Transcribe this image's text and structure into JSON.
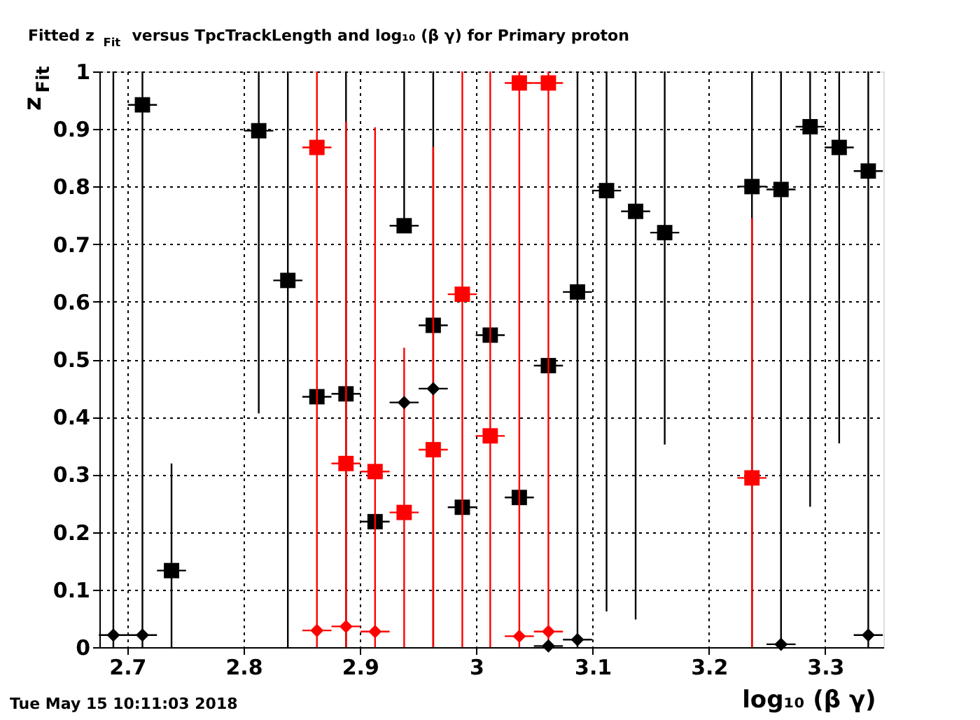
{
  "chart_data": {
    "type": "scatter",
    "title": "Fitted  z$_{Fit}$  versus TpcTrackLength and log₁₀ (β γ) for Primary proton",
    "xlabel": "log₁₀ (β γ)",
    "ylabel": "z$_{Fit}$",
    "annotations": [
      "Tue May 15 10:11:03 2018"
    ],
    "xlim": [
      2.676,
      3.35
    ],
    "xticks": [
      2.7,
      2.8,
      2.9,
      {
        "value": 3.0,
        "label": "3"
      },
      3.1,
      3.2,
      3.3
    ],
    "ylim": [
      0,
      1
    ],
    "yticks": [
      0,
      0.1,
      0.2,
      0.3,
      0.4,
      0.5,
      0.6,
      0.7,
      0.8,
      0.9,
      1
    ],
    "grid": true,
    "series": [
      {
        "color": "#000000",
        "marker": "square",
        "x": [
          2.713,
          2.738,
          2.813,
          2.838,
          2.863,
          2.888,
          2.913,
          2.938,
          2.963,
          2.988,
          3.012,
          3.037,
          3.062,
          3.087,
          3.112,
          3.137,
          3.162,
          3.237,
          3.262,
          3.287,
          3.312,
          3.337
        ],
        "values": [
          0.942,
          0.133,
          0.897,
          0.637,
          0.435,
          0.44,
          0.218,
          0.732,
          0.559,
          0.243,
          0.542,
          0.26,
          0.489,
          0.617,
          0.793,
          0.757,
          0.72,
          0.8,
          0.795,
          0.904,
          0.868,
          0.827
        ],
        "errors": [
          [
            0,
            1
          ],
          [
            0,
            0.319
          ],
          [
            0.406,
            1
          ],
          [
            0,
            1
          ],
          null,
          [
            0,
            1
          ],
          null,
          [
            0.732,
            1
          ],
          [
            0,
            1
          ],
          null,
          null,
          null,
          null,
          [
            0,
            1
          ],
          [
            0.062,
            1
          ],
          [
            0.048,
            1
          ],
          [
            0.352,
            1
          ],
          [
            0,
            1
          ],
          [
            0,
            1
          ],
          [
            0.244,
            1
          ],
          [
            0.354,
            1
          ],
          [
            0,
            1
          ]
        ],
        "xerrors": [
          0.0125,
          0.0125,
          0.0125,
          0.0125,
          0.0125,
          0.0125,
          0.0125,
          0.0125,
          0.0125,
          0.0125,
          0.0125,
          0.0125,
          0.0125,
          0.0125,
          0.0125,
          0.0125,
          0.0125,
          0.0125,
          0.0125,
          0.0125,
          0.0125,
          0.0125
        ]
      },
      {
        "color": "#ff0000",
        "marker": "square",
        "x": [
          2.863,
          2.888,
          2.913,
          2.938,
          2.963,
          2.988,
          3.012,
          3.037,
          3.062,
          3.237
        ],
        "values": [
          0.868,
          0.319,
          0.305,
          0.234,
          0.343,
          0.613,
          0.367,
          0.98,
          0.98,
          0.294
        ],
        "errors": [
          [
            0,
            1
          ],
          [
            0,
            0.913
          ],
          [
            0,
            0.903
          ],
          [
            0,
            0.52
          ],
          [
            0,
            0.869
          ],
          [
            0,
            1
          ],
          [
            0,
            1
          ],
          [
            0,
            1
          ],
          [
            0,
            1
          ],
          [
            0,
            0.745
          ]
        ],
        "xerrors": [
          0.0125,
          0.0125,
          0.0125,
          0.0125,
          0.0125,
          0.0125,
          0.0125,
          0.0125,
          0.0125,
          0.0125
        ]
      },
      {
        "color": "#000000",
        "marker": "diamond",
        "x": [
          2.688,
          2.713,
          2.938,
          2.963,
          3.062,
          3.087,
          3.262,
          3.337
        ],
        "values": [
          0.021,
          0.021,
          0.425,
          0.449,
          0.002,
          0.013,
          0.005,
          0.021
        ],
        "errors": [
          [
            0,
            1
          ],
          null,
          null,
          null,
          null,
          null,
          null,
          null
        ],
        "xerrors": [
          0.0125,
          0.0125,
          0.0125,
          0.0125,
          0.0125,
          0.0125,
          0.0125,
          0.0125
        ]
      },
      {
        "color": "#ff0000",
        "marker": "diamond",
        "x": [
          2.863,
          2.888,
          2.913,
          3.037,
          3.062
        ],
        "values": [
          0.029,
          0.036,
          0.027,
          0.019,
          0.027
        ],
        "xerrors": [
          0.0125,
          0.0125,
          0.0125,
          0.0125,
          0.0125
        ]
      }
    ]
  }
}
